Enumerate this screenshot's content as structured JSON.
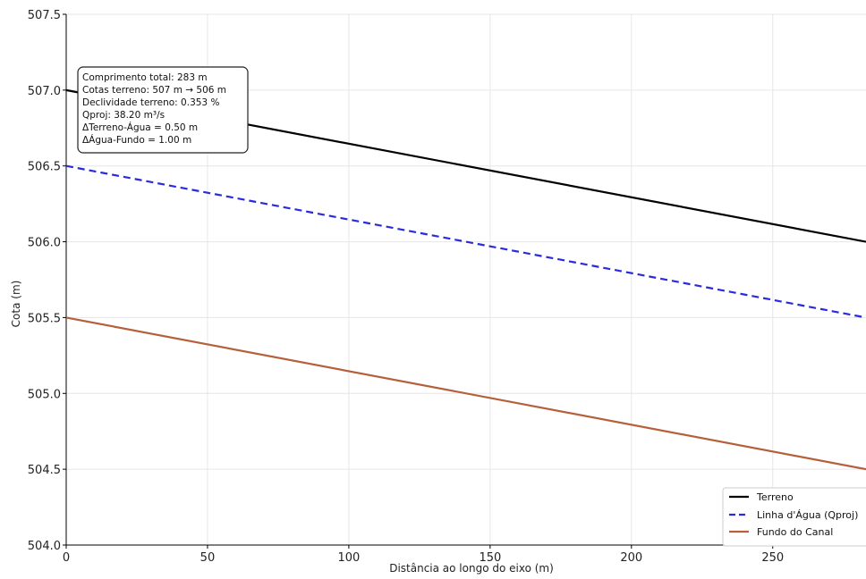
{
  "chart_data": {
    "type": "line",
    "title": "",
    "xlabel": "Distância ao longo do eixo (m)",
    "ylabel": "Cota (m)",
    "xlim": [
      0,
      283
    ],
    "ylim": [
      504.0,
      507.5
    ],
    "x_ticks": [
      0,
      50,
      100,
      150,
      200,
      250
    ],
    "y_ticks": [
      504.0,
      504.5,
      505.0,
      505.5,
      506.0,
      506.5,
      507.0,
      507.5
    ],
    "y_tick_labels": [
      "504.0",
      "504.5",
      "505.0",
      "505.5",
      "506.0",
      "506.5",
      "507.0",
      "507.5"
    ],
    "grid": true,
    "legend_position": "bottom-right",
    "series": [
      {
        "name": "Terreno",
        "x": [
          0,
          283
        ],
        "y": [
          507.0,
          506.0
        ],
        "color": "#000000",
        "style": "solid"
      },
      {
        "name": "Linha d'Água (Qproj)",
        "x": [
          0,
          283
        ],
        "y": [
          506.5,
          505.5
        ],
        "color": "#2b2bdc",
        "style": "dashed"
      },
      {
        "name": "Fundo do Canal",
        "x": [
          0,
          283
        ],
        "y": [
          505.5,
          504.5
        ],
        "color": "#b5603a",
        "style": "solid"
      }
    ],
    "annotation": {
      "lines": [
        "Comprimento total: 283 m",
        "Cotas terreno: 507 m → 506 m",
        "Declividade terreno: 0.353 %",
        "Qproj: 38.20 m³/s",
        "ΔTerreno-Água = 0.50 m",
        "ΔÁgua-Fundo = 1.00 m"
      ]
    }
  }
}
